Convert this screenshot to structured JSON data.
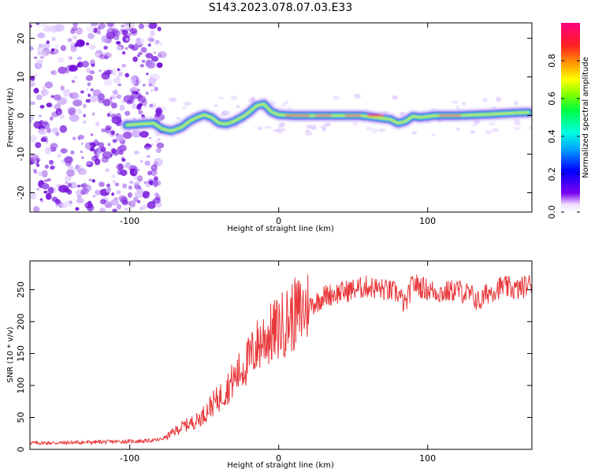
{
  "figure_title": "S143.2023.078.07.03.E33",
  "chart_data": [
    {
      "type": "heatmap",
      "title": "S143.2023.078.07.03.E33",
      "xlabel": "Height of straight line (km)",
      "ylabel": "Frequency (Hz)",
      "xlim": [
        -167,
        170
      ],
      "ylim": [
        -25,
        24
      ],
      "xticks": [
        -100,
        0,
        100
      ],
      "yticks": [
        -20,
        -10,
        0,
        10,
        20
      ],
      "colorbar": {
        "label": "Normalized spectral amplitude",
        "range": [
          0,
          1
        ],
        "ticks": [
          0.0,
          0.2,
          0.4,
          0.6,
          0.8
        ],
        "colormap": "rainbow (violet to red/pink)"
      },
      "noise_region_x": [
        -167,
        -78
      ],
      "ridge": {
        "x": [
          -102,
          -92,
          -84,
          -78,
          -72,
          -65,
          -60,
          -55,
          -50,
          -45,
          -40,
          -35,
          -30,
          -25,
          -20,
          -15,
          -10,
          -5,
          0,
          10,
          25,
          40,
          55,
          65,
          75,
          80,
          85,
          90,
          95,
          105,
          120,
          140,
          160,
          168
        ],
        "freq_hz": [
          -2.5,
          -2.2,
          -2.0,
          -3.5,
          -4.0,
          -3.0,
          -1.5,
          -0.5,
          0.2,
          -0.5,
          -2.0,
          -2.2,
          -1.5,
          -0.5,
          0.8,
          2.5,
          3.0,
          1.0,
          0.2,
          0.0,
          0.0,
          0.0,
          0.0,
          -0.5,
          -1.0,
          -2.0,
          -1.5,
          -0.2,
          -0.5,
          0.0,
          0.0,
          0.3,
          0.7,
          0.8
        ]
      }
    },
    {
      "type": "line",
      "xlabel": "Height of straight line (km)",
      "ylabel": "SNR (10 * v/v)",
      "xlim": [
        -167,
        170
      ],
      "ylim": [
        0,
        295
      ],
      "xticks": [
        -100,
        0,
        100
      ],
      "yticks": [
        0,
        50,
        100,
        150,
        200,
        250
      ],
      "series": [
        {
          "name": "SNR",
          "color": "#e8383b",
          "x": [
            -167,
            -150,
            -130,
            -110,
            -90,
            -80,
            -75,
            -70,
            -65,
            -60,
            -55,
            -50,
            -45,
            -40,
            -35,
            -30,
            -25,
            -20,
            -15,
            -10,
            -5,
            0,
            5,
            10,
            15,
            20,
            25,
            30,
            40,
            50,
            60,
            70,
            80,
            85,
            90,
            100,
            110,
            120,
            130,
            135,
            140,
            150,
            160,
            170
          ],
          "values": [
            10,
            10,
            11,
            12,
            13,
            15,
            20,
            28,
            35,
            40,
            45,
            55,
            70,
            80,
            95,
            110,
            125,
            140,
            160,
            175,
            180,
            190,
            200,
            210,
            215,
            225,
            230,
            240,
            245,
            250,
            255,
            250,
            245,
            225,
            260,
            250,
            245,
            250,
            240,
            230,
            245,
            255,
            250,
            260
          ]
        }
      ]
    }
  ]
}
